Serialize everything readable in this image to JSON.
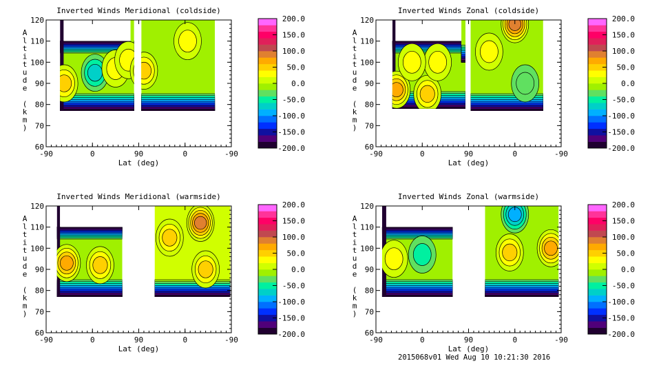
{
  "footer": "2015068v01 Wed Aug 10 10:21:30 2016",
  "chart_data": [
    {
      "type": "heatmap",
      "title": "Inverted Winds Meridional (coldside)",
      "xlabel": "Lat (deg)",
      "ylabel": "Altitude (km)",
      "x_domain": [
        -90,
        270
      ],
      "x_ticks": [
        "-90",
        "0",
        "90",
        "0",
        "-90"
      ],
      "ylim": [
        60,
        120
      ],
      "y_ticks": [
        "60",
        "70",
        "80",
        "90",
        "100",
        "110",
        "120"
      ],
      "regions": [
        {
          "x": [
            -63,
            81
          ],
          "alt": [
            77,
            110
          ],
          "base": -15
        },
        {
          "x": [
            -63,
            -56
          ],
          "alt": [
            77,
            120
          ],
          "base": -200
        },
        {
          "x": [
            74,
            81
          ],
          "alt": [
            100,
            120
          ],
          "base": -20
        },
        {
          "x": [
            95,
            238
          ],
          "alt": [
            77,
            120
          ],
          "base": -20
        }
      ],
      "blobs": [
        {
          "x": 5,
          "alt": 95,
          "v": -70
        },
        {
          "x": -55,
          "alt": 90,
          "v": 40
        },
        {
          "x": 45,
          "alt": 97,
          "v": 35
        },
        {
          "x": 70,
          "alt": 101,
          "v": 35
        },
        {
          "x": 100,
          "alt": 96,
          "v": 50
        },
        {
          "x": 185,
          "alt": 110,
          "v": 35
        }
      ]
    },
    {
      "type": "heatmap",
      "title": "Inverted Winds Zonal (coldside)",
      "xlabel": "Lat (deg)",
      "ylabel": "Altitude (km)",
      "x_domain": [
        -90,
        270
      ],
      "x_ticks": [
        "-90",
        "0",
        "90",
        "0",
        "-90"
      ],
      "ylim": [
        60,
        120
      ],
      "y_ticks": [
        "60",
        "70",
        "80",
        "90",
        "100",
        "110",
        "120"
      ],
      "regions": [
        {
          "x": [
            -58,
            84
          ],
          "alt": [
            78,
            110
          ],
          "base": -10
        },
        {
          "x": [
            -58,
            -52
          ],
          "alt": [
            78,
            120
          ],
          "base": -200
        },
        {
          "x": [
            76,
            84
          ],
          "alt": [
            100,
            120
          ],
          "base": -20
        },
        {
          "x": [
            94,
            235
          ],
          "alt": [
            77,
            120
          ],
          "base": -10
        }
      ],
      "blobs": [
        {
          "x": -50,
          "alt": 87,
          "v": 60
        },
        {
          "x": 10,
          "alt": 85,
          "v": 55
        },
        {
          "x": 30,
          "alt": 100,
          "v": 30
        },
        {
          "x": -20,
          "alt": 100,
          "v": 25
        },
        {
          "x": 180,
          "alt": 118,
          "v": 90
        },
        {
          "x": 130,
          "alt": 105,
          "v": 35
        },
        {
          "x": 200,
          "alt": 90,
          "v": -40
        }
      ]
    },
    {
      "type": "heatmap",
      "title": "Inverted Winds Meridional (warmside)",
      "xlabel": "Lat (deg)",
      "ylabel": "Altitude (km)",
      "x_domain": [
        -90,
        270
      ],
      "x_ticks": [
        "-90",
        "0",
        "90",
        "0",
        "-90"
      ],
      "ylim": [
        60,
        120
      ],
      "y_ticks": [
        "60",
        "70",
        "80",
        "90",
        "100",
        "110",
        "120"
      ],
      "regions": [
        {
          "x": [
            -69,
            58
          ],
          "alt": [
            77,
            110
          ],
          "base": -5
        },
        {
          "x": [
            -69,
            -63
          ],
          "alt": [
            77,
            120
          ],
          "base": -200
        },
        {
          "x": [
            121,
            268
          ],
          "alt": [
            77,
            120
          ],
          "base": 10
        }
      ],
      "blobs": [
        {
          "x": -50,
          "alt": 93,
          "v": 70
        },
        {
          "x": 15,
          "alt": 92,
          "v": 40
        },
        {
          "x": 210,
          "alt": 112,
          "v": 90
        },
        {
          "x": 150,
          "alt": 105,
          "v": 40
        },
        {
          "x": 220,
          "alt": 90,
          "v": 40
        }
      ]
    },
    {
      "type": "heatmap",
      "title": "Inverted Winds Zonal (warmside)",
      "xlabel": "Lat (deg)",
      "ylabel": "Altitude (km)",
      "x_domain": [
        -90,
        270
      ],
      "x_ticks": [
        "-90",
        "0",
        "90",
        "0",
        "-90"
      ],
      "ylim": [
        60,
        120
      ],
      "y_ticks": [
        "60",
        "70",
        "80",
        "90",
        "100",
        "110",
        "120"
      ],
      "regions": [
        {
          "x": [
            -78,
            59
          ],
          "alt": [
            77,
            110
          ],
          "base": -15
        },
        {
          "x": [
            -78,
            -70
          ],
          "alt": [
            77,
            120
          ],
          "base": -200
        },
        {
          "x": [
            122,
            265
          ],
          "alt": [
            77,
            120
          ],
          "base": -10
        }
      ],
      "blobs": [
        {
          "x": 0,
          "alt": 97,
          "v": -45
        },
        {
          "x": 170,
          "alt": 98,
          "v": 40
        },
        {
          "x": 250,
          "alt": 100,
          "v": 70
        },
        {
          "x": 180,
          "alt": 116,
          "v": -90
        },
        {
          "x": -55,
          "alt": 95,
          "v": 35
        }
      ]
    }
  ],
  "colorbar": {
    "ticks": [
      "200.0",
      "150.0",
      "100.0",
      "50.0",
      "0.0",
      "-50.0",
      "-100.0",
      "-150.0",
      "-200.0"
    ],
    "range": [
      -200,
      200
    ],
    "colors": [
      "#200030",
      "#50007a",
      "#1010a0",
      "#0030ff",
      "#0070ff",
      "#00b0ff",
      "#00d0c8",
      "#00f0a0",
      "#60e060",
      "#a0f000",
      "#d0ff00",
      "#ffff00",
      "#ffd000",
      "#ffaa00",
      "#e08030",
      "#c04850",
      "#e0205a",
      "#ff0066",
      "#ff3399",
      "#ff66ff"
    ]
  }
}
